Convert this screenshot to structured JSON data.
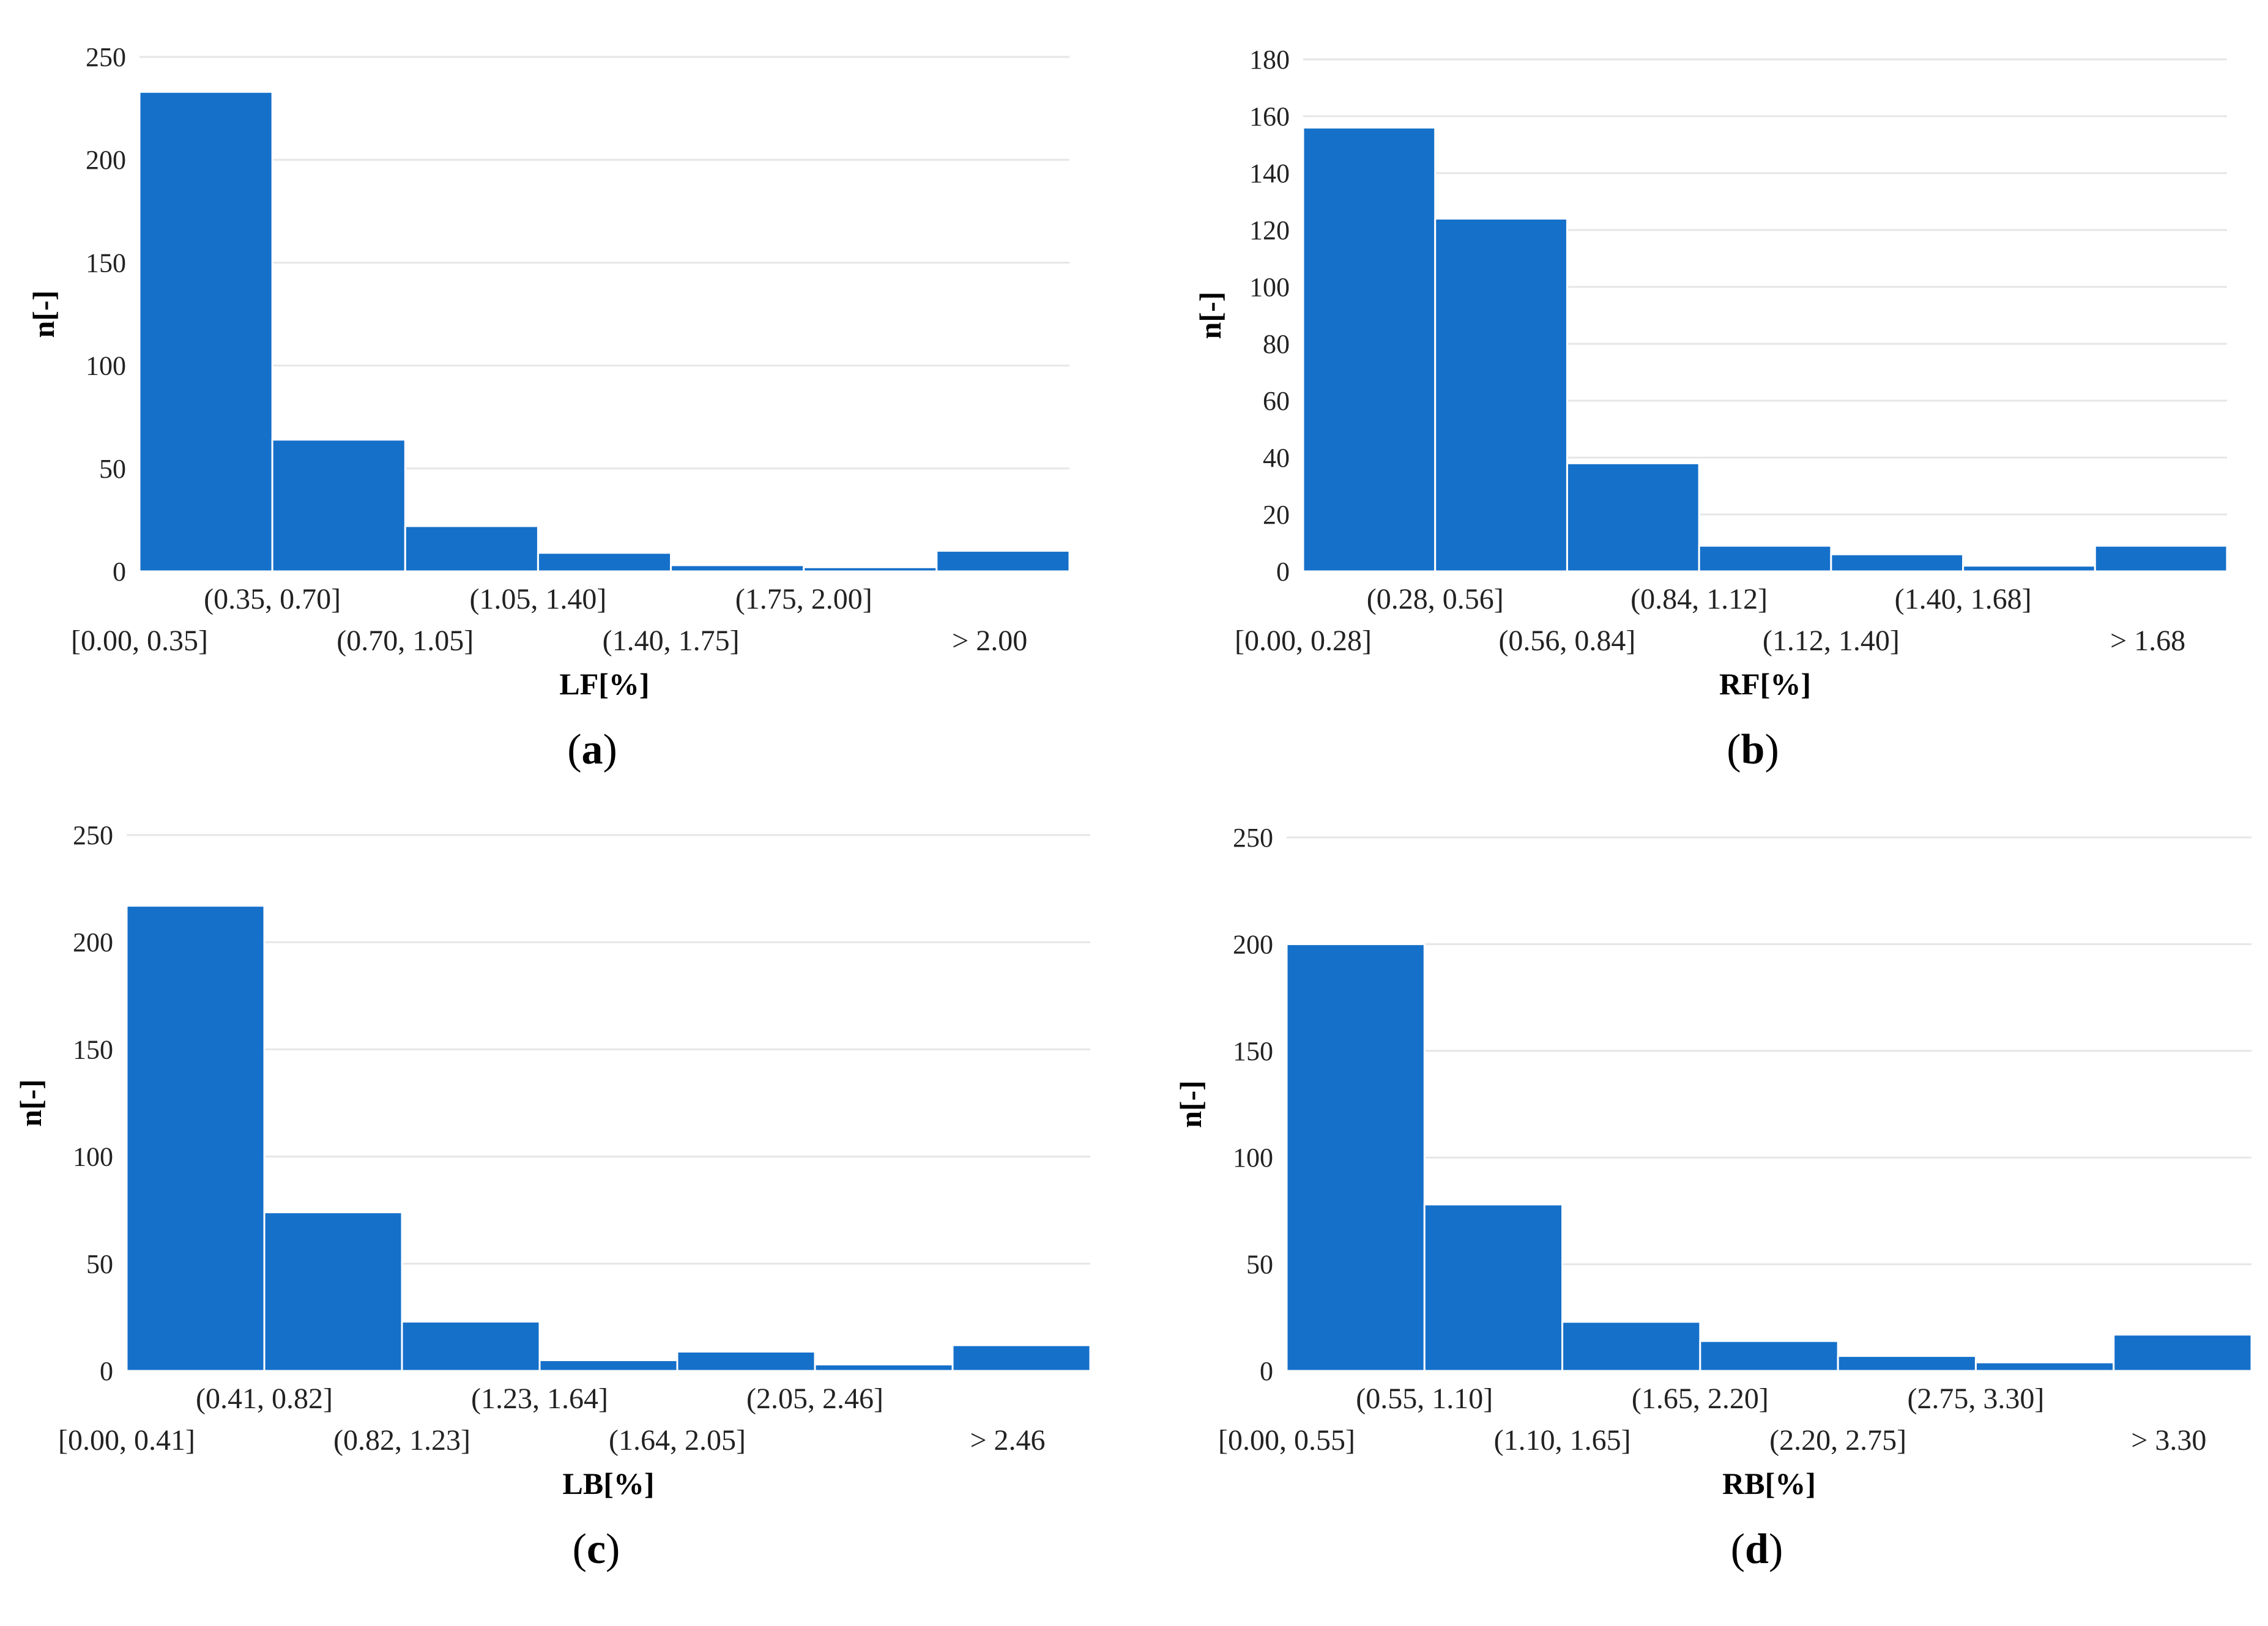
{
  "bar_color": "#1570CA",
  "chart_data": [
    {
      "type": "bar",
      "panel": "a",
      "panel_letter": "a",
      "categories": [
        "[0.00, 0.35]",
        "(0.35, 0.70]",
        "(0.70, 1.05]",
        "(1.05, 1.40]",
        "(1.40, 1.75]",
        "(1.75, 2.00]",
        "> 2.00"
      ],
      "values": [
        233,
        64,
        22,
        9,
        3,
        2,
        10
      ],
      "xlabel": "LF[%]",
      "ylabel": "n[-]",
      "ylim": [
        0,
        250
      ],
      "yticks": [
        0,
        50,
        100,
        150,
        200,
        250
      ],
      "grid": true
    },
    {
      "type": "bar",
      "panel": "b",
      "panel_letter": "b",
      "categories": [
        "[0.00, 0.28]",
        "(0.28, 0.56]",
        "(0.56, 0.84]",
        "(0.84, 1.12]",
        "(1.12, 1.40]",
        "(1.40, 1.68]",
        "> 1.68"
      ],
      "values": [
        156,
        124,
        38,
        9,
        6,
        2,
        9
      ],
      "xlabel": "RF[%]",
      "ylabel": "n[-]",
      "ylim": [
        0,
        180
      ],
      "yticks": [
        0,
        20,
        40,
        60,
        80,
        100,
        120,
        140,
        160,
        180
      ],
      "grid": true
    },
    {
      "type": "bar",
      "panel": "c",
      "panel_letter": "c",
      "categories": [
        "[0.00, 0.41]",
        "(0.41, 0.82]",
        "(0.82, 1.23]",
        "(1.23, 1.64]",
        "(1.64, 2.05]",
        "(2.05, 2.46]",
        "> 2.46"
      ],
      "values": [
        217,
        74,
        23,
        5,
        9,
        3,
        12
      ],
      "xlabel": "LB[%]",
      "ylabel": "n[-]",
      "ylim": [
        0,
        250
      ],
      "yticks": [
        0,
        50,
        100,
        150,
        200,
        250
      ],
      "grid": true
    },
    {
      "type": "bar",
      "panel": "d",
      "panel_letter": "d",
      "categories": [
        "[0.00, 0.55]",
        "(0.55, 1.10]",
        "(1.10, 1.65]",
        "(1.65, 2.20]",
        "(2.20, 2.75]",
        "(2.75, 3.30]",
        "> 3.30"
      ],
      "values": [
        200,
        78,
        23,
        14,
        7,
        4,
        17
      ],
      "xlabel": "RB[%]",
      "ylabel": "n[-]",
      "ylim": [
        0,
        250
      ],
      "yticks": [
        0,
        50,
        100,
        150,
        200,
        250
      ],
      "grid": true
    }
  ]
}
